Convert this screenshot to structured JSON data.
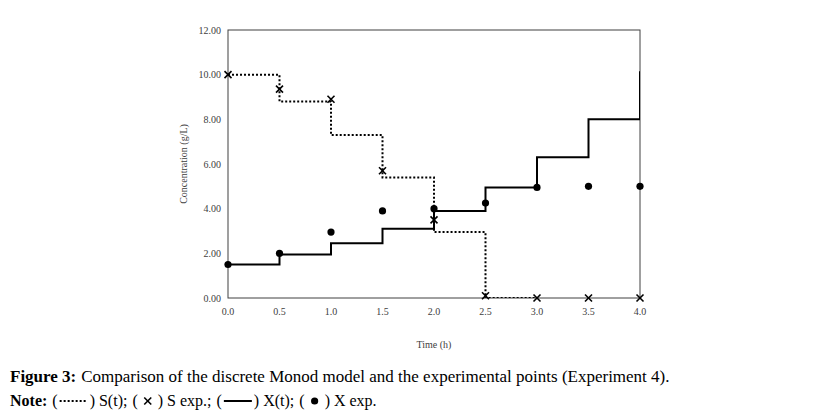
{
  "chart_data": {
    "type": "line",
    "x_label": "Time (h)",
    "y_label": "Concentration (g/L)",
    "xlim": [
      0,
      4
    ],
    "ylim": [
      0,
      12
    ],
    "xticks": [
      {
        "value": 0,
        "label": "0.0"
      },
      0.5,
      {
        "value": 1,
        "label": "1.0"
      },
      1.5,
      {
        "value": 2,
        "label": "2.0"
      },
      2.5,
      {
        "value": 3,
        "label": "3.0"
      },
      3.5,
      {
        "value": 4,
        "label": "4.0"
      }
    ],
    "yticks": [
      {
        "value": 0,
        "label": "0.00"
      },
      {
        "value": 2,
        "label": "2.00"
      },
      {
        "value": 4,
        "label": "4.00"
      },
      {
        "value": 6,
        "label": "6.00"
      },
      {
        "value": 8,
        "label": "8.00"
      },
      {
        "value": 10,
        "label": "10.00"
      },
      {
        "value": 12,
        "label": "12.00"
      }
    ],
    "grid": false,
    "series": [
      {
        "name": "S(t)",
        "type": "step",
        "line_style": "dotted",
        "color": "#000000",
        "x": [
          0,
          0.5,
          1,
          1.5,
          2,
          2.5,
          3
        ],
        "values": [
          10,
          8.8,
          7.3,
          5.4,
          2.95,
          0,
          0
        ]
      },
      {
        "name": "S exp.",
        "type": "scatter",
        "marker": "x",
        "color": "#000000",
        "x": [
          0,
          0.5,
          1,
          1.5,
          2,
          2.5,
          3,
          3.5,
          4
        ],
        "values": [
          10,
          9.35,
          8.9,
          5.7,
          3.5,
          0.1,
          0,
          0,
          0
        ]
      },
      {
        "name": "X(t)",
        "type": "step",
        "line_style": "solid",
        "color": "#000000",
        "x": [
          0,
          0.5,
          1,
          1.5,
          2,
          2.5,
          3,
          3.5,
          4
        ],
        "values": [
          1.5,
          1.95,
          2.45,
          3.1,
          3.9,
          4.95,
          6.3,
          8.0,
          10.15
        ]
      },
      {
        "name": "X exp.",
        "type": "scatter",
        "marker": "circle",
        "color": "#000000",
        "x": [
          0,
          0.5,
          1,
          1.5,
          2,
          2.5,
          3,
          3.5,
          4
        ],
        "values": [
          1.5,
          2.0,
          2.95,
          3.9,
          4.0,
          4.25,
          4.95,
          5.0,
          5.0
        ]
      }
    ],
    "caption": {
      "label": "Figure 3:",
      "text": "Comparison of the discrete Monod model and the experimental points (Experiment 4)."
    },
    "note": {
      "label": "Note:",
      "open": "(",
      "close": ")",
      "separator": ";"
    }
  }
}
